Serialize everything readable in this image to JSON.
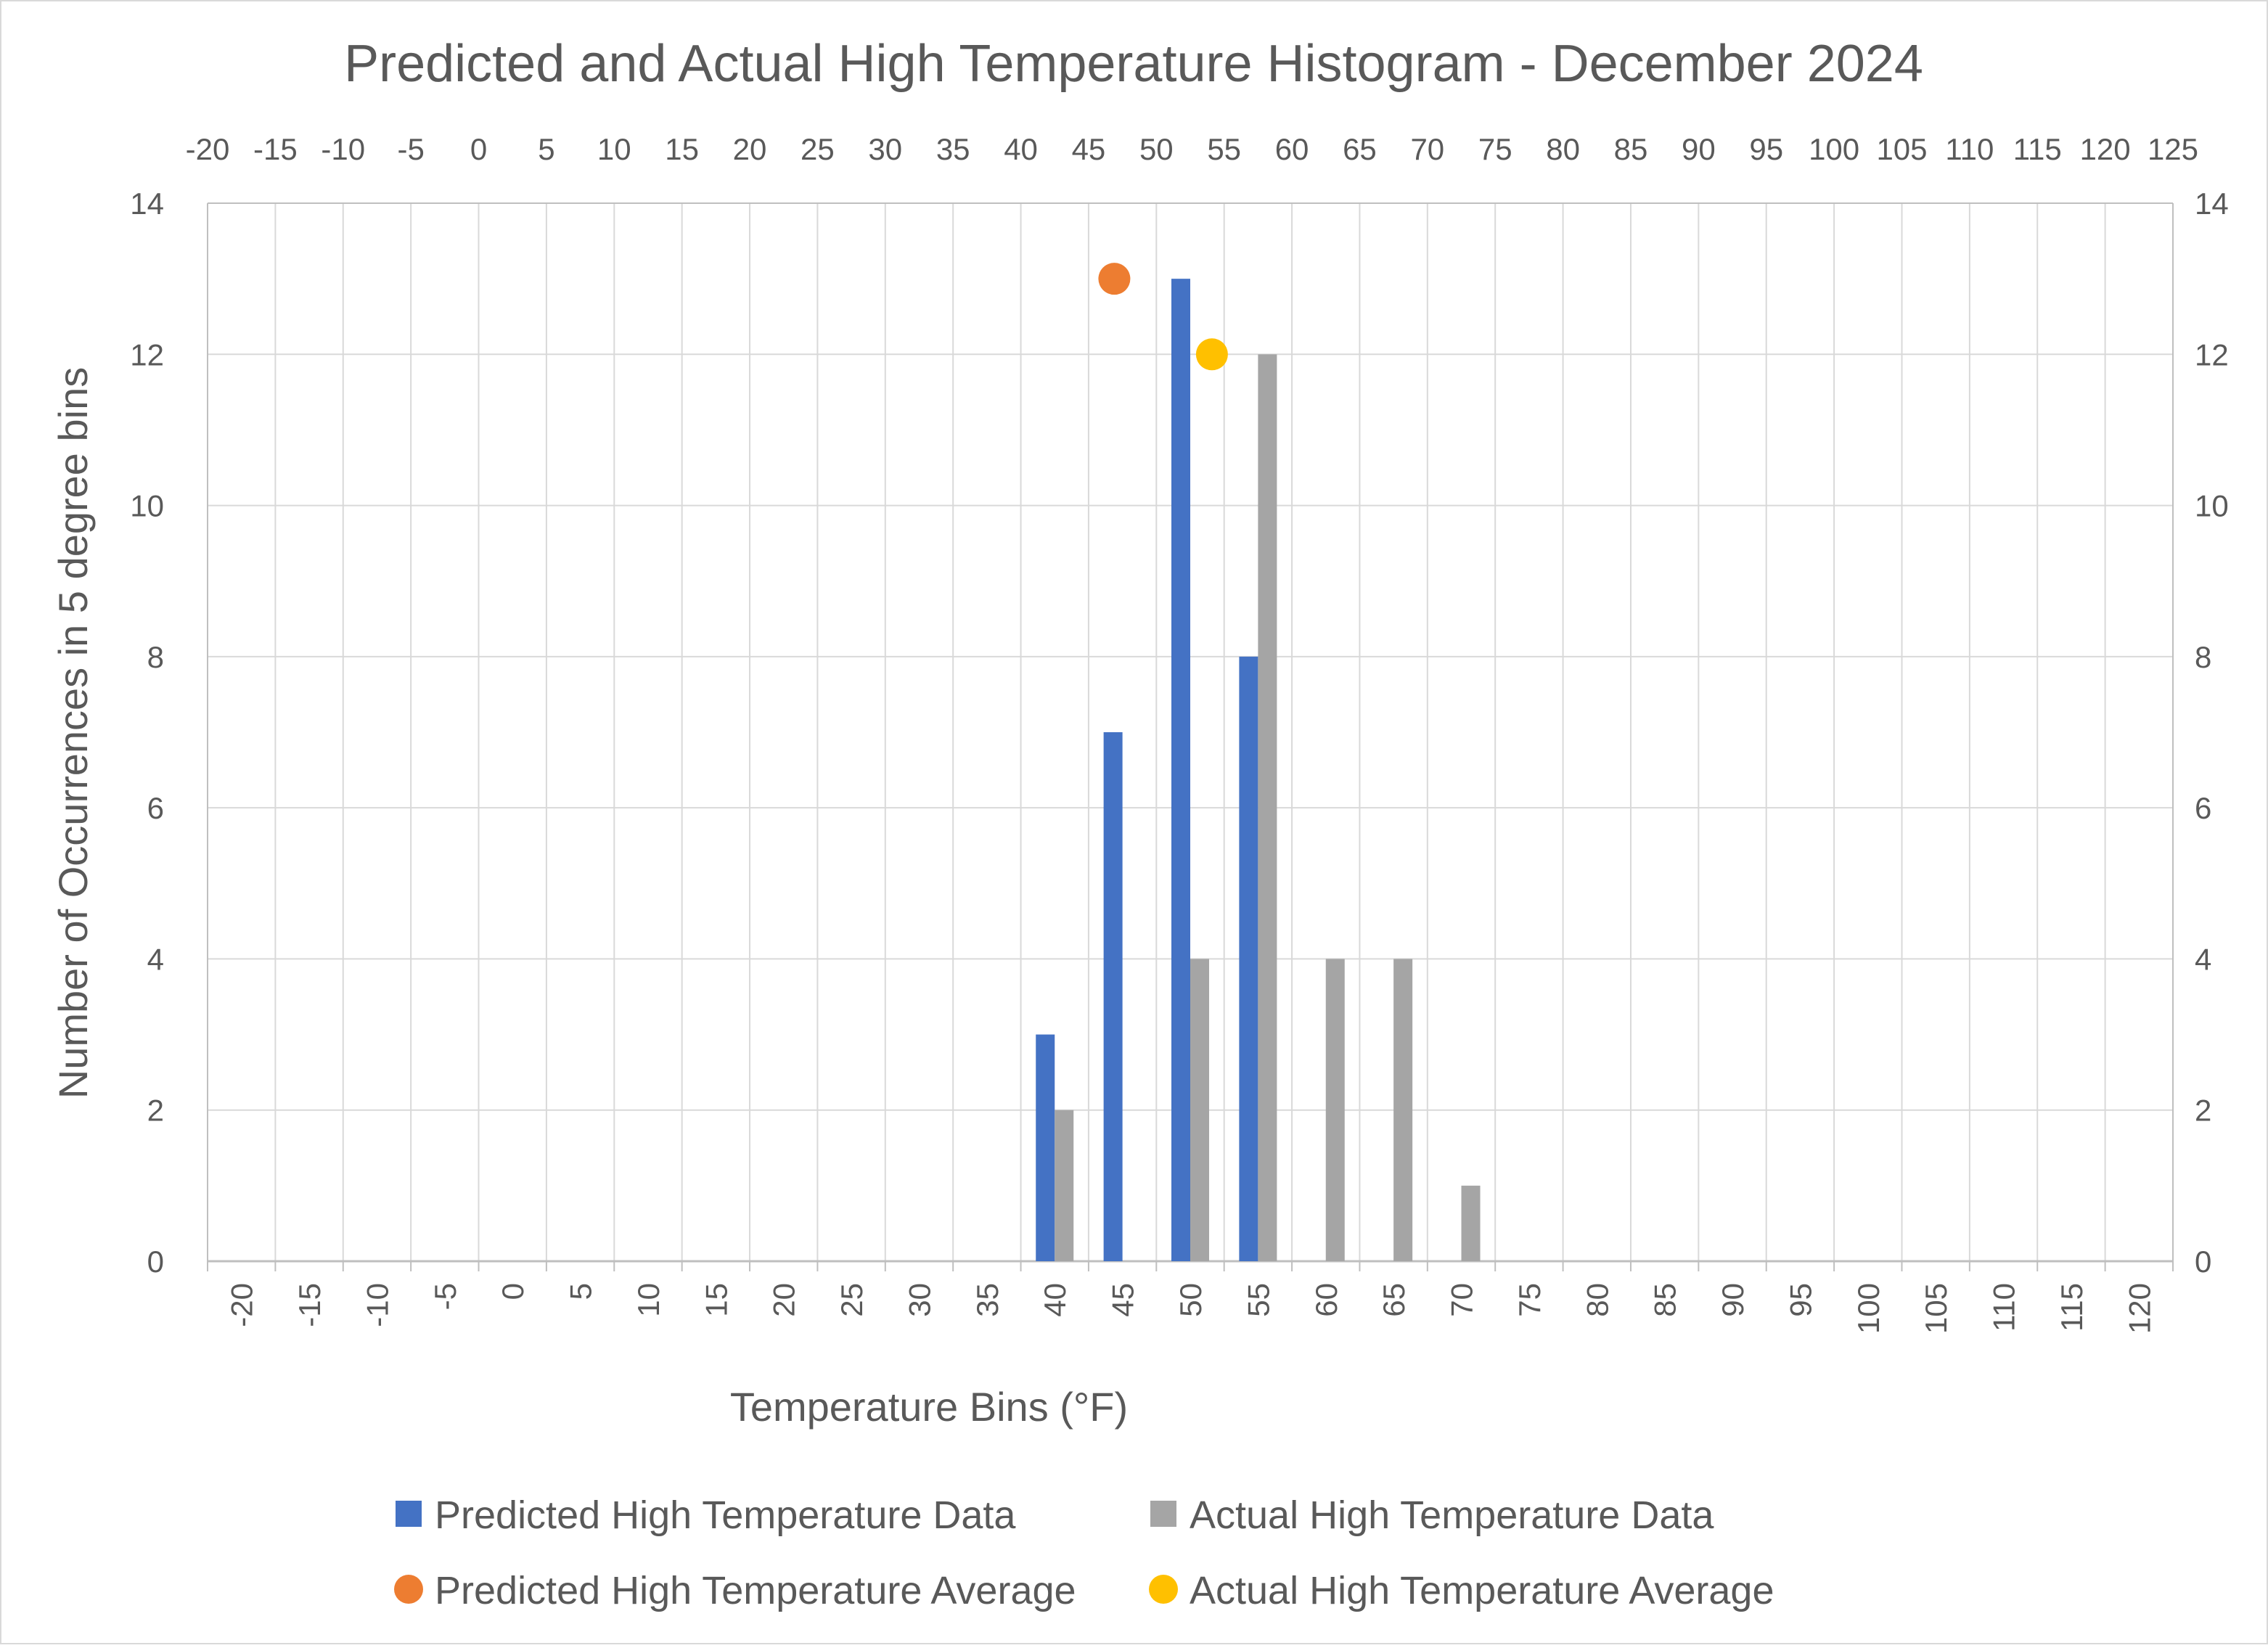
{
  "chart_data": {
    "type": "bar",
    "title": "Predicted and Actual High Temperature Histogram - December 2024",
    "xlabel": "Temperature Bins (°F)",
    "ylabel": "Number of Occurrences in 5 degree bins",
    "ylim": [
      0,
      14
    ],
    "yticks": [
      "0",
      "2",
      "4",
      "6",
      "8",
      "10",
      "12",
      "14"
    ],
    "categories": [
      "-20",
      "-15",
      "-10",
      "-5",
      "0",
      "5",
      "10",
      "15",
      "20",
      "25",
      "30",
      "35",
      "40",
      "45",
      "50",
      "55",
      "60",
      "65",
      "70",
      "75",
      "80",
      "85",
      "90",
      "95",
      "100",
      "105",
      "110",
      "115",
      "120"
    ],
    "series": [
      {
        "name": "Predicted High Temperature Data",
        "color": "#4472C4",
        "values": [
          0,
          0,
          0,
          0,
          0,
          0,
          0,
          0,
          0,
          0,
          0,
          0,
          3,
          7,
          13,
          8,
          0,
          0,
          0,
          0,
          0,
          0,
          0,
          0,
          0,
          0,
          0,
          0,
          0
        ]
      },
      {
        "name": "Actual High Temperature Data",
        "color": "#A5A5A5",
        "values": [
          0,
          0,
          0,
          0,
          0,
          0,
          0,
          0,
          0,
          0,
          0,
          0,
          2,
          0,
          4,
          12,
          4,
          4,
          1,
          0,
          0,
          0,
          0,
          0,
          0,
          0,
          0,
          0,
          0
        ]
      }
    ],
    "secondary_x_axis": {
      "range": [
        -20,
        125
      ],
      "ticks": [
        "-20",
        "-15",
        "-10",
        "-5",
        "0",
        "5",
        "10",
        "15",
        "20",
        "25",
        "30",
        "35",
        "40",
        "45",
        "50",
        "55",
        "60",
        "65",
        "70",
        "75",
        "80",
        "85",
        "90",
        "95",
        "100",
        "105",
        "110",
        "115",
        "120",
        "125"
      ]
    },
    "secondary_y_axis": {
      "range": [
        0,
        14
      ],
      "ticks": [
        "0",
        "2",
        "4",
        "6",
        "8",
        "10",
        "12",
        "14"
      ]
    },
    "averages": [
      {
        "name": "Predicted High Temperature Average",
        "color": "#ED7D31",
        "x": 46.9,
        "y": 13
      },
      {
        "name": "Actual High Temperature Average",
        "color": "#FFC000",
        "x": 54.1,
        "y": 12
      }
    ],
    "legend": [
      {
        "label": "Predicted High Temperature Data",
        "color": "#4472C4",
        "marker": "square"
      },
      {
        "label": "Actual High Temperature Data",
        "color": "#A5A5A5",
        "marker": "square"
      },
      {
        "label": "Predicted High Temperature Average",
        "color": "#ED7D31",
        "marker": "circle"
      },
      {
        "label": "Actual High Temperature Average",
        "color": "#FFC000",
        "marker": "circle"
      }
    ],
    "legend_position": "bottom",
    "grid": true
  }
}
